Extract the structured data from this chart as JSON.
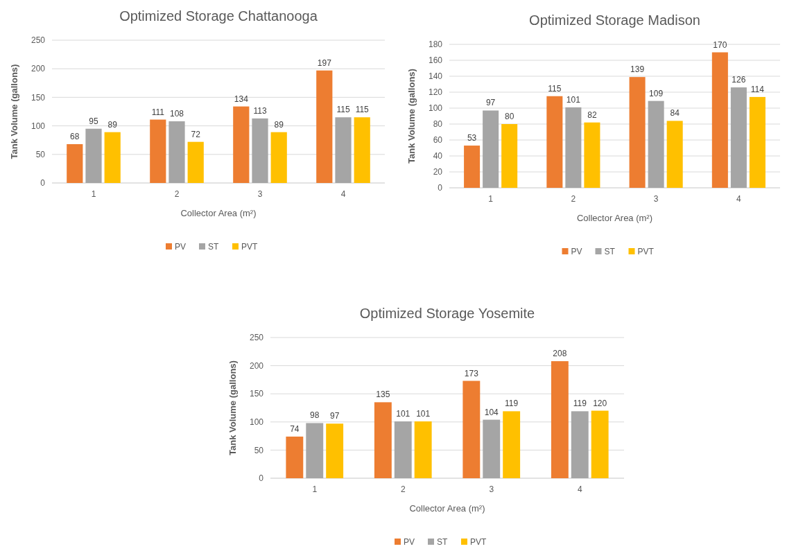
{
  "chart_data": [
    {
      "type": "bar",
      "title": "Optimized Storage Chattanooga",
      "xlabel": "Collector Area (m²)",
      "ylabel": "Tank Volume (gallons)",
      "categories": [
        "1",
        "2",
        "3",
        "4"
      ],
      "series": [
        {
          "name": "PV",
          "color": "#ed7d31",
          "values": [
            68,
            111,
            134,
            197
          ]
        },
        {
          "name": "ST",
          "color": "#a5a5a5",
          "values": [
            95,
            108,
            113,
            115
          ]
        },
        {
          "name": "PVT",
          "color": "#ffc000",
          "values": [
            89,
            72,
            89,
            115
          ]
        }
      ],
      "ylim": [
        0,
        250
      ],
      "yticks": [
        0,
        50,
        100,
        150,
        200,
        250
      ],
      "grid": "y",
      "legend": "bottom",
      "data_labels": true
    },
    {
      "type": "bar",
      "title": "Optimized Storage Madison",
      "xlabel": "Collector Area (m²)",
      "ylabel": "Tank Volume (gallons)",
      "categories": [
        "1",
        "2",
        "3",
        "4"
      ],
      "series": [
        {
          "name": "PV",
          "color": "#ed7d31",
          "values": [
            53,
            115,
            139,
            170
          ]
        },
        {
          "name": "ST",
          "color": "#a5a5a5",
          "values": [
            97,
            101,
            109,
            126
          ]
        },
        {
          "name": "PVT",
          "color": "#ffc000",
          "values": [
            80,
            82,
            84,
            114
          ]
        }
      ],
      "ylim": [
        0,
        180
      ],
      "yticks": [
        0,
        20,
        40,
        60,
        80,
        100,
        120,
        140,
        160,
        180
      ],
      "grid": "y",
      "legend": "bottom",
      "data_labels": true
    },
    {
      "type": "bar",
      "title": "Optimized Storage Yosemite",
      "xlabel": "Collector Area (m²)",
      "ylabel": "Tank Volume (gallons)",
      "categories": [
        "1",
        "2",
        "3",
        "4"
      ],
      "series": [
        {
          "name": "PV",
          "color": "#ed7d31",
          "values": [
            74,
            135,
            173,
            208
          ]
        },
        {
          "name": "ST",
          "color": "#a5a5a5",
          "values": [
            98,
            101,
            104,
            119
          ]
        },
        {
          "name": "PVT",
          "color": "#ffc000",
          "values": [
            97,
            101,
            119,
            120
          ]
        }
      ],
      "ylim": [
        0,
        250
      ],
      "yticks": [
        0,
        50,
        100,
        150,
        200,
        250
      ],
      "grid": "y",
      "legend": "bottom",
      "data_labels": true
    }
  ]
}
